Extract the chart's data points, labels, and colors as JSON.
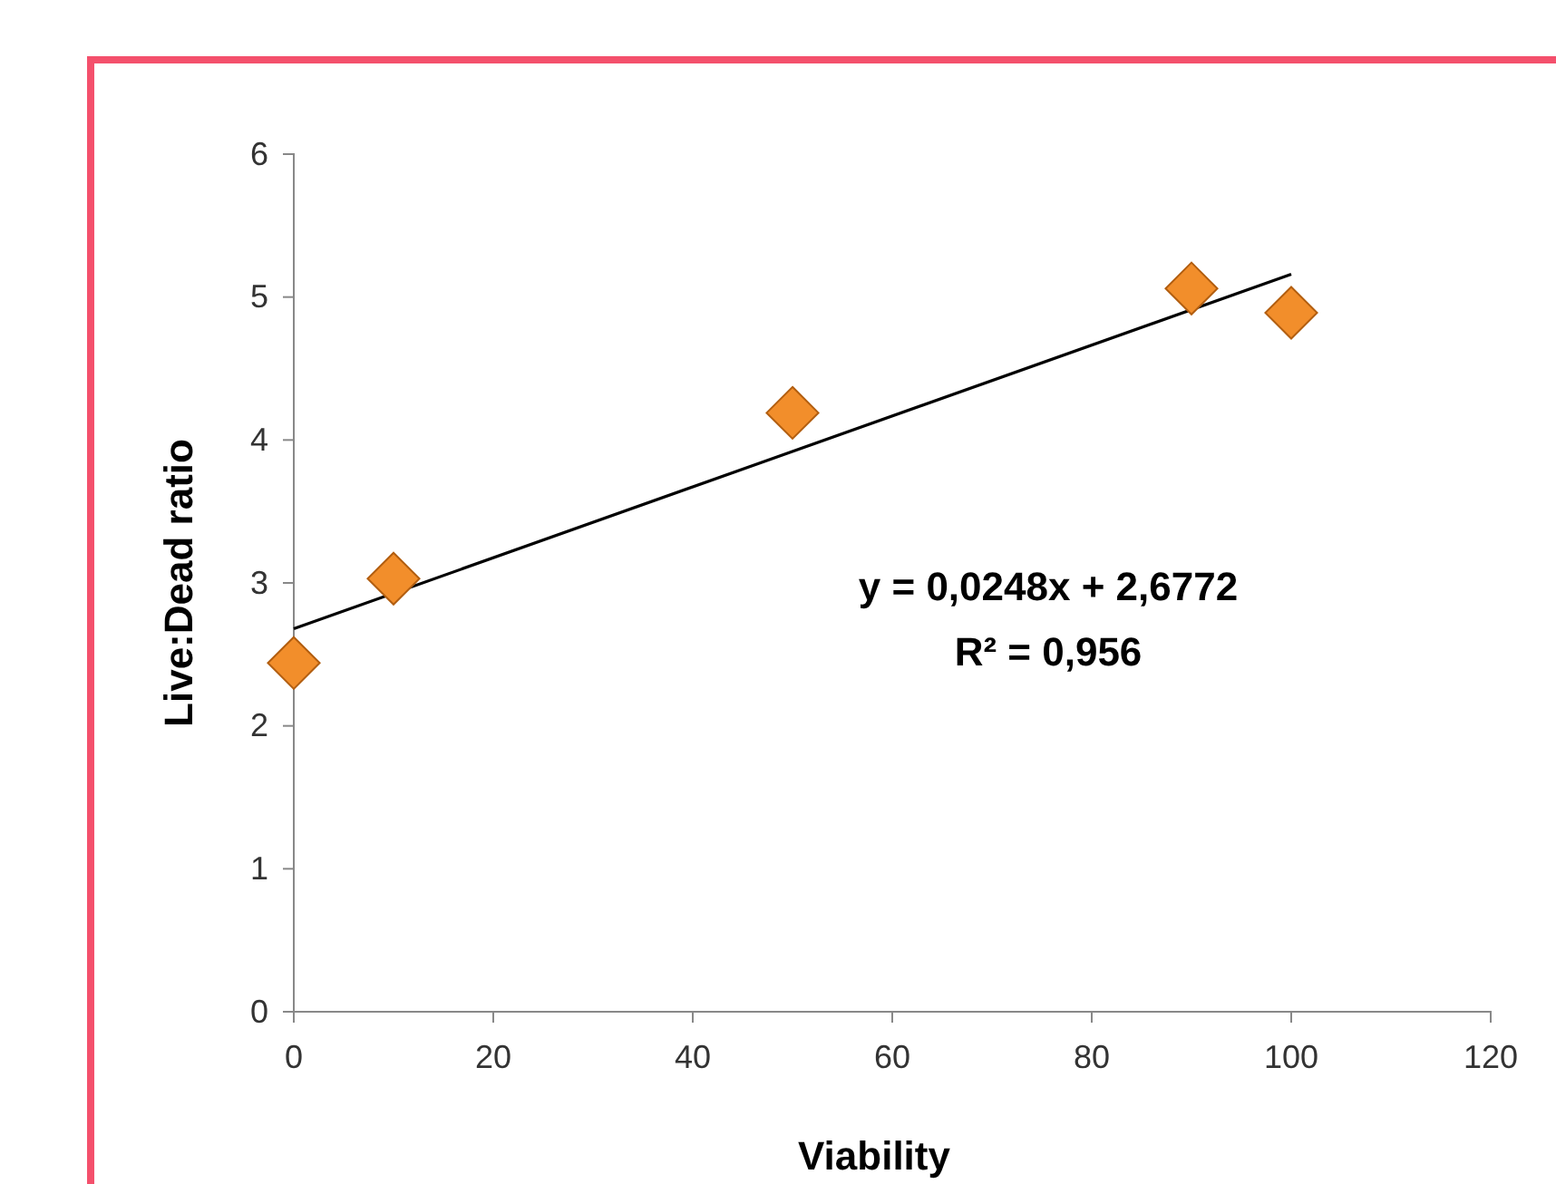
{
  "chart_data": {
    "type": "scatter",
    "xlabel": "Viability",
    "ylabel": "Live:Dead ratio",
    "xlim": [
      0,
      120
    ],
    "xticks": [
      0,
      20,
      40,
      60,
      80,
      100,
      120
    ],
    "ylim": [
      0,
      6
    ],
    "yticks": [
      0,
      1,
      2,
      3,
      4,
      5,
      6
    ],
    "grid": false,
    "marker": "diamond",
    "annotations": [
      "y = 0,0248x + 2,6772",
      "R² = 0,956"
    ],
    "series": [
      {
        "color": "#f28e2b",
        "x": [
          0,
          10,
          50,
          90,
          100
        ],
        "values": [
          2.44,
          3.03,
          4.19,
          5.06,
          4.89
        ]
      },
      {
        "type": "line",
        "color": "#000000",
        "marker": "none",
        "x": [
          0,
          100
        ],
        "values": [
          2.68,
          5.16
        ]
      }
    ]
  }
}
